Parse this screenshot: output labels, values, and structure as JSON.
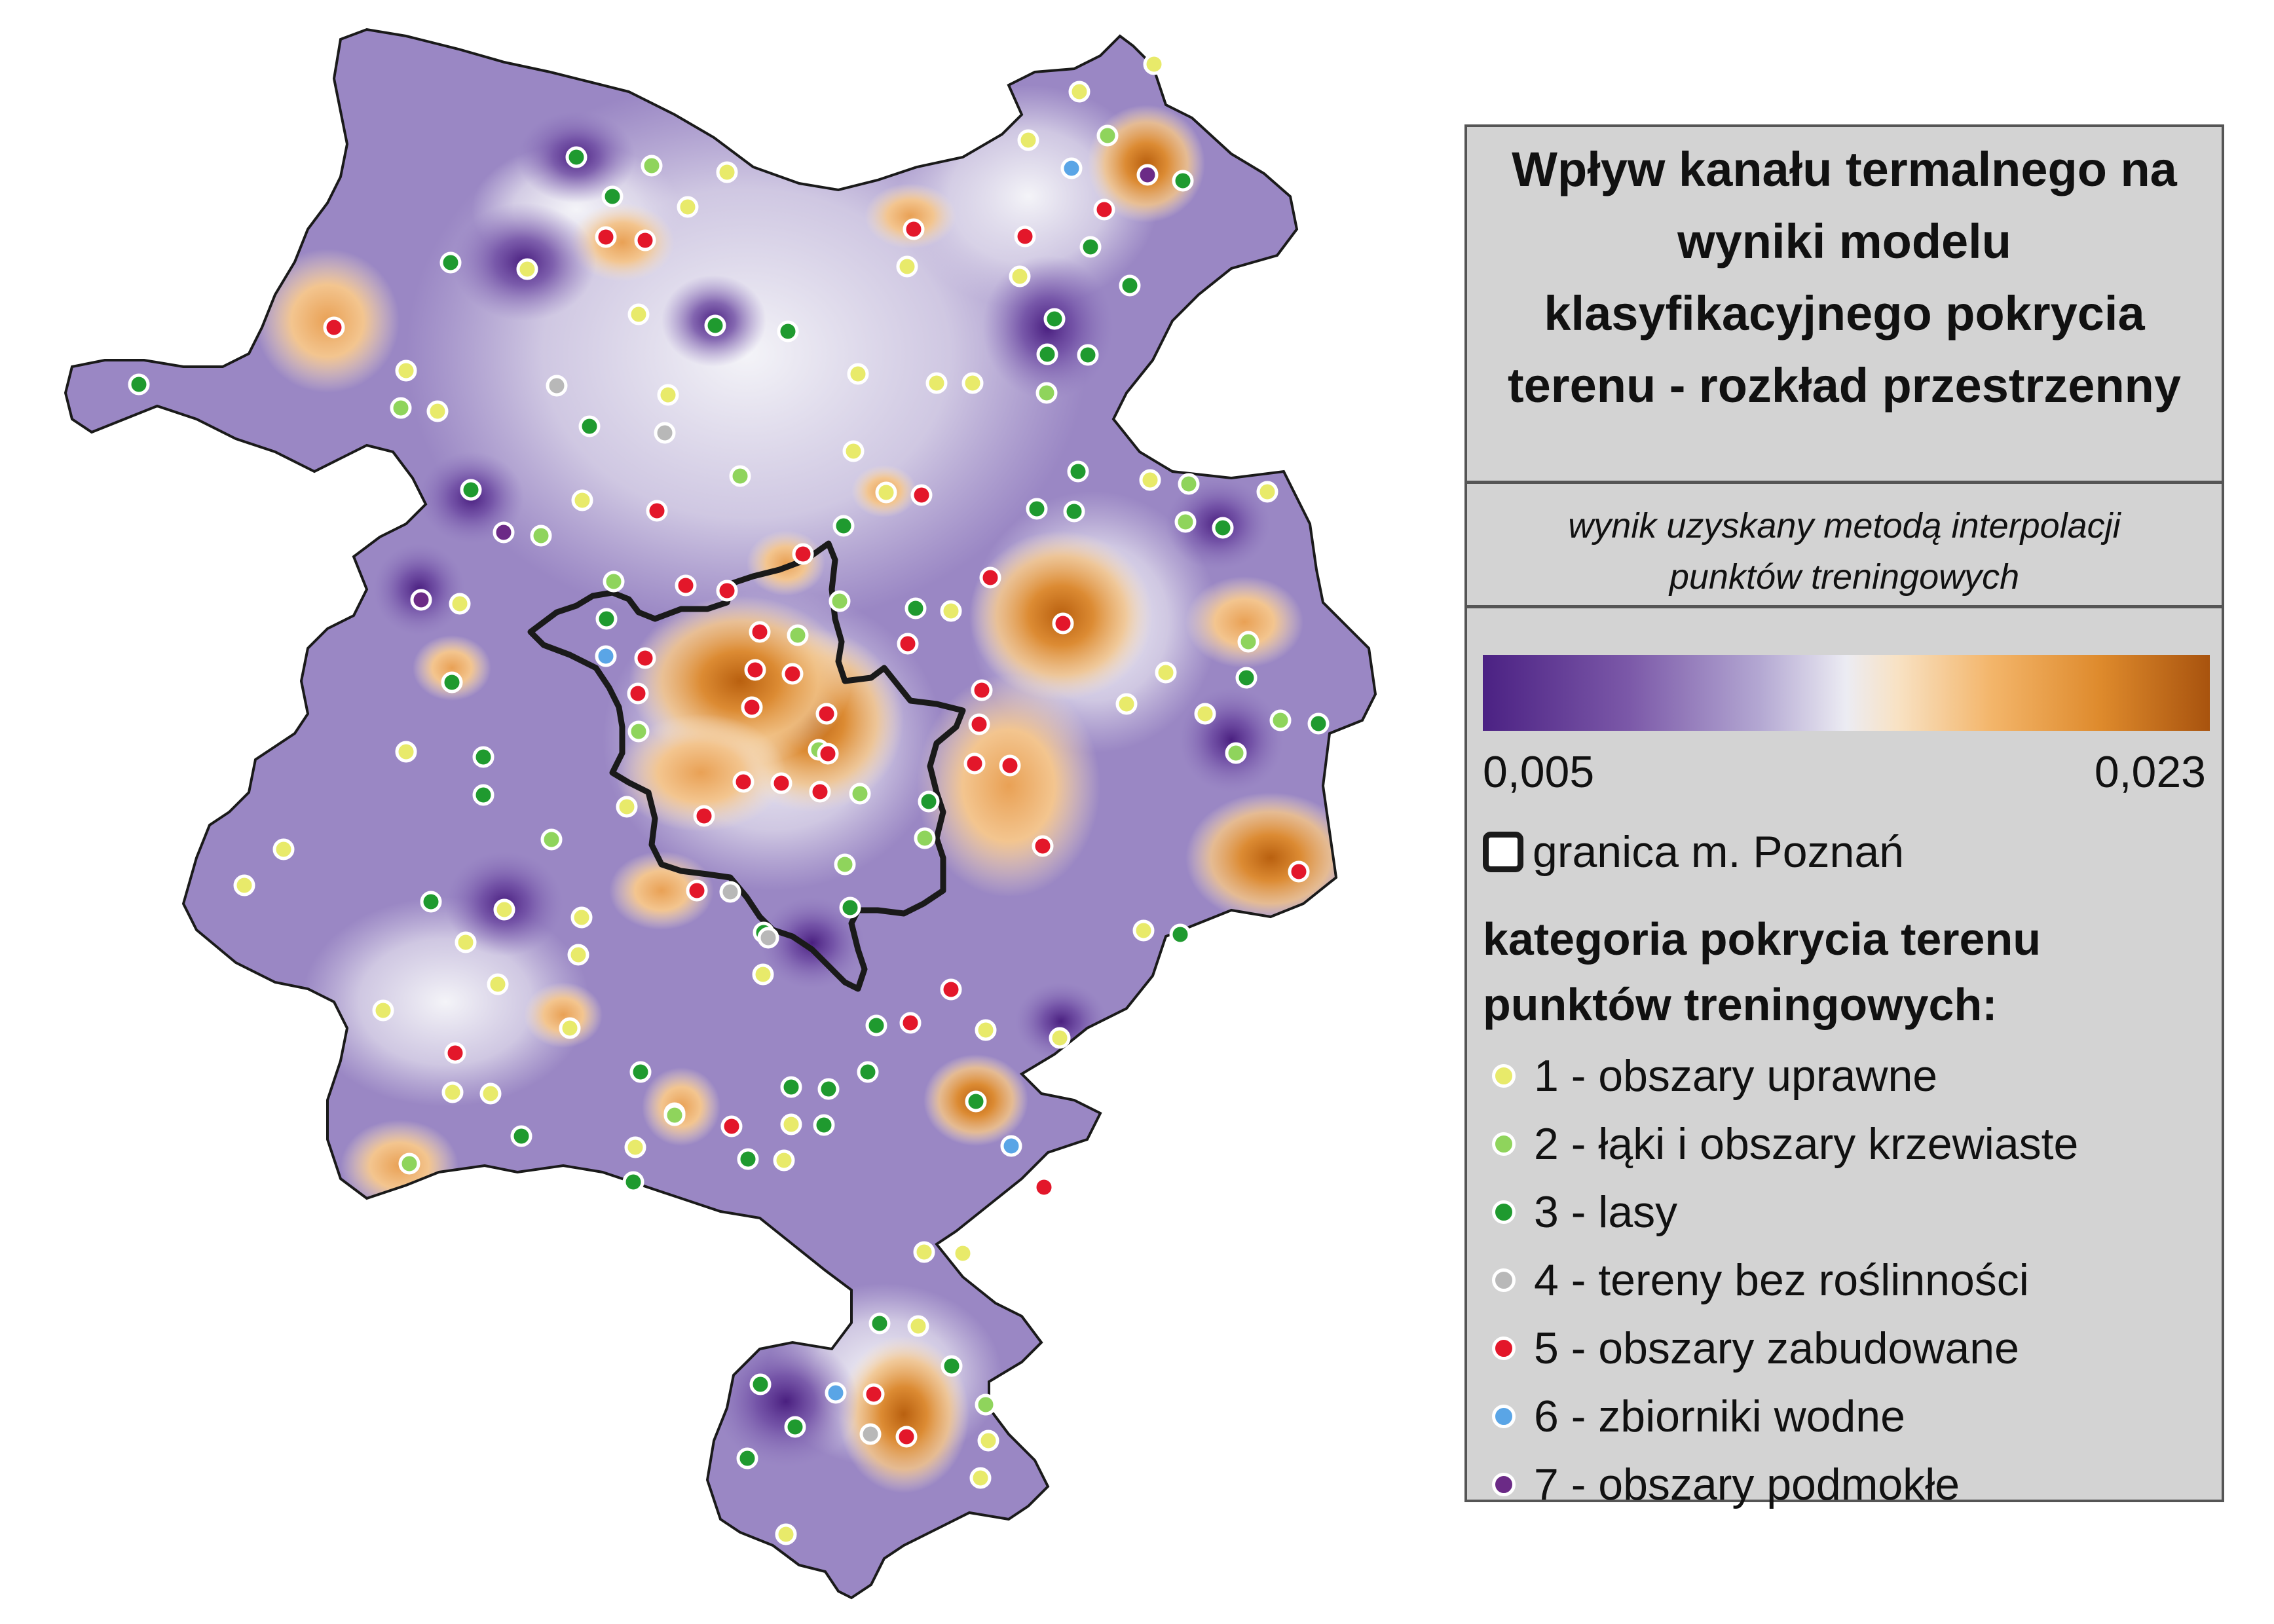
{
  "legend": {
    "title": "Wpływ kanału termalnego na wyniki modelu klasyfikacyjnego pokrycia terenu - rozkład przestrzenny",
    "subtitle": "wynik uzyskany metodą interpolacji punktów treningowych",
    "ramp_min": "0,005",
    "ramp_max": "0,023",
    "boundary_label": "granica m. Poznań",
    "categories_header": "kategoria pokrycia terenu punktów treningowych:",
    "categories": [
      {
        "label": "1 - obszary uprawne",
        "color": "#e8ea6a"
      },
      {
        "label": "2 - łąki i obszary krzewiaste",
        "color": "#8fd45c"
      },
      {
        "label": "3 - lasy",
        "color": "#1f9a2f"
      },
      {
        "label": "4 - tereny bez roślinności",
        "color": "#b8b8b8"
      },
      {
        "label": "5 - obszary zabudowane",
        "color": "#e3172a"
      },
      {
        "label": "6 - zbiorniki wodne",
        "color": "#5aa5e6"
      },
      {
        "label": "7 - obszary podmokłe",
        "color": "#6b2a86"
      }
    ]
  },
  "colors": {
    "low": "#4b2183",
    "mid": "#ececf3",
    "high": "#a8530e",
    "border": "#1a1a1a"
  }
}
